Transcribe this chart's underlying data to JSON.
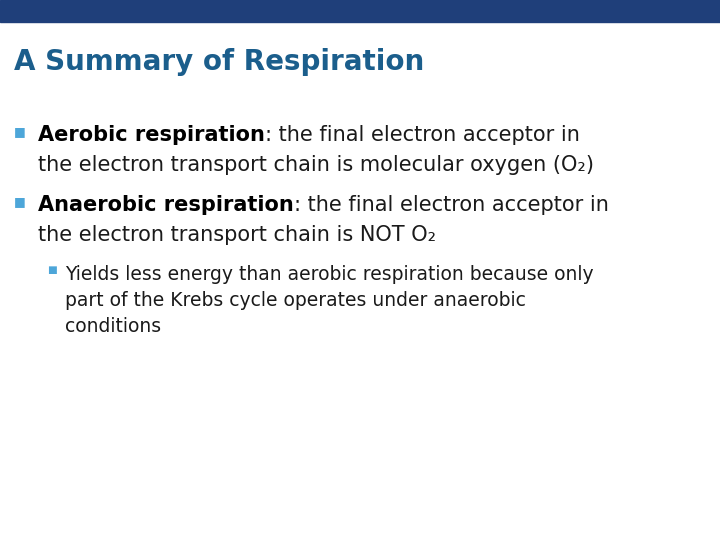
{
  "title": "A Summary of Respiration",
  "title_color": "#1B5E8C",
  "header_bar_color": "#1F3F7A",
  "background_color": "#FFFFFF",
  "bullet_color": "#4DA6D9",
  "text_color": "#1A1A1A",
  "bold_color": "#000000",
  "title_fontsize": 20,
  "body_fontsize": 15,
  "sub_fontsize": 13.5,
  "bullet1_bold": "Aerobic respiration",
  "bullet1_suffix": ": the final electron acceptor in",
  "bullet1_line2": "the electron transport chain is molecular oxygen (O₂)",
  "bullet2_bold": "Anaerobic respiration",
  "bullet2_suffix": ": the final electron acceptor in",
  "bullet2_line2": "the electron transport chain is NOT O₂",
  "sub_line1": "Yields less energy than aerobic respiration because only",
  "sub_line2": "part of the Krebs cycle operates under anaerobic",
  "sub_line3": "conditions"
}
